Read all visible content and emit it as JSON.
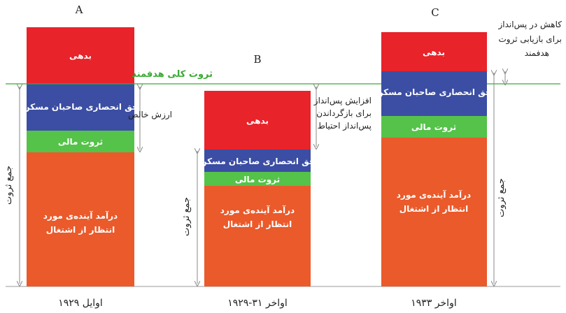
{
  "colors": {
    "debt": "#e8232a",
    "housing": "#3b4ea3",
    "financial": "#55c24a",
    "income": "#ea5a2b",
    "target_line": "#3aaa35"
  },
  "target_label": "ثروت کلی هدفمند",
  "columns": {
    "A": {
      "letter": "A",
      "period": "اوایل ۱۹۲۹",
      "debt": "بدهی",
      "housing": "حق انحصاری صاحبان مسکن",
      "financial": "ثروت مالی",
      "income_line1": "درآمد آینده‌ی مورد",
      "income_line2": "انتظار از اشتغال",
      "total": "جمع ثروت",
      "net_worth": "ارزش خالص"
    },
    "B": {
      "letter": "B",
      "period": "اواخر ۳۱-۱۹۲۹",
      "debt": "بدهی",
      "housing": "حق انحصاری صاحبان مسکن",
      "financial": "ثروت مالی",
      "income_line1": "درآمد آینده‌ی مورد",
      "income_line2": "انتظار از اشتغال",
      "total": "جمع ثروت",
      "note_line1": "افزایش پس‌انداز",
      "note_line2": "برای بازگرداندن",
      "note_line3": "پس‌انداز احتیاط"
    },
    "C": {
      "letter": "C",
      "period": "اواخر ۱۹۳۳",
      "debt": "بدهی",
      "housing": "حق انحصاری صاحبان مسکن",
      "financial": "ثروت مالی",
      "income_line1": "درآمد آینده‌ی مورد",
      "income_line2": "انتظار از اشتغال",
      "total": "جمع ثروت",
      "note_line1": "کاهش در پس‌انداز",
      "note_line2": "برای بازیابی ثروت",
      "note_line3": "هدفمند"
    }
  }
}
